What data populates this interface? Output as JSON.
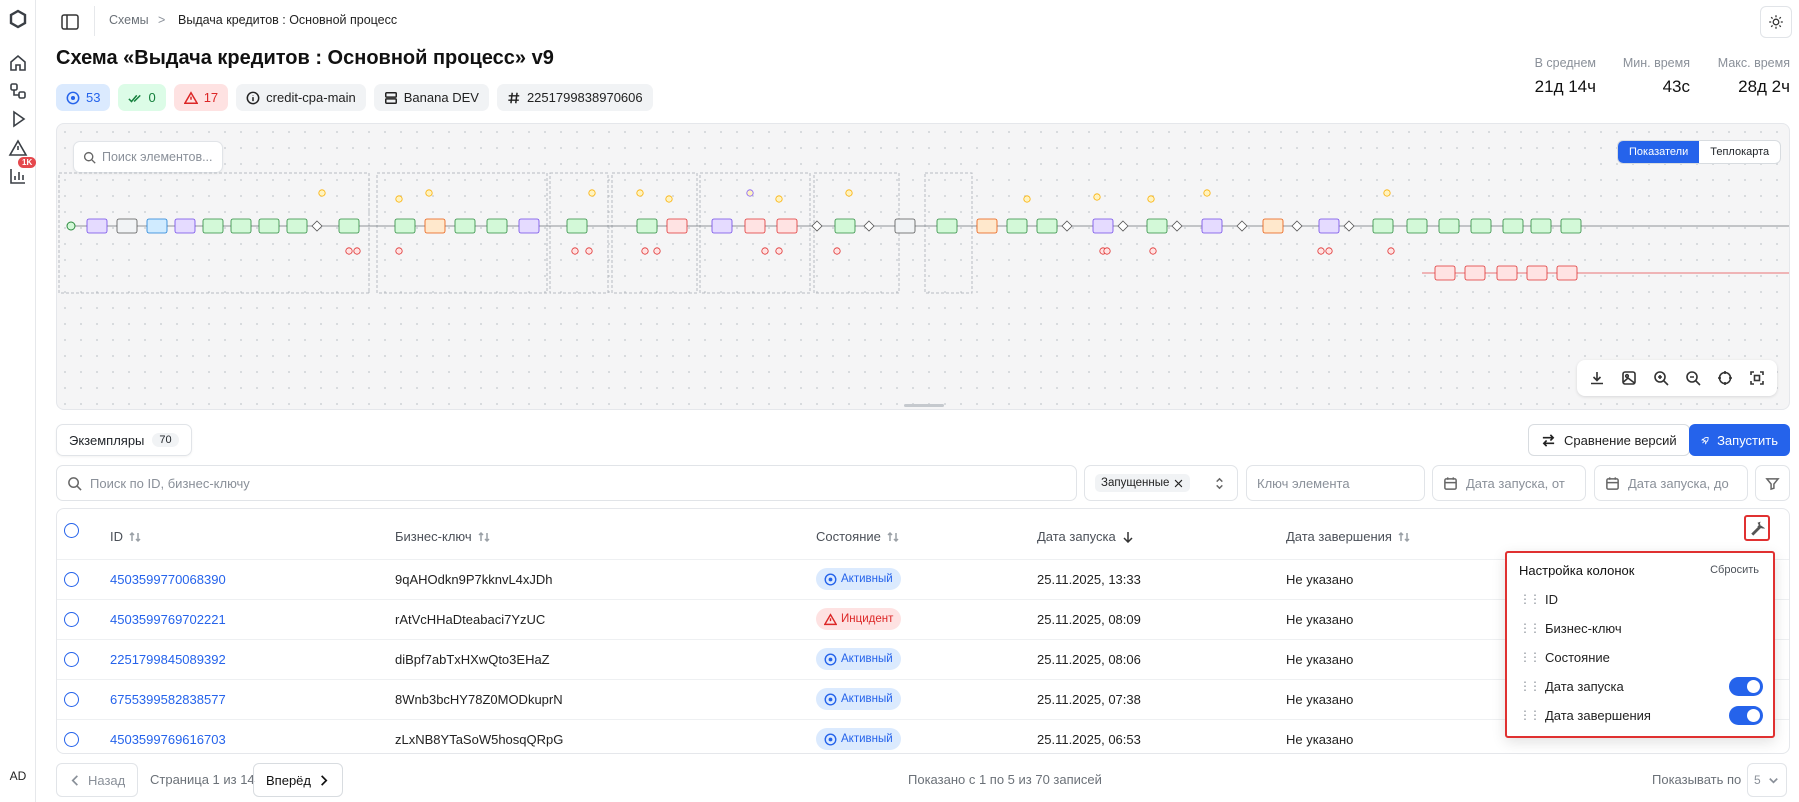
{
  "breadcrumb": {
    "root": "Схемы",
    "separator": ">",
    "current": "Выдача кредитов : Основной процесс"
  },
  "title": "Схема «Выдача кредитов : Основной процесс» v9",
  "rail": {
    "alerts_badge": "1K",
    "avatar": "AD"
  },
  "chips": {
    "active": "53",
    "completed": "0",
    "incidents": "17",
    "key": "credit-cpa-main",
    "env": "Banana DEV",
    "id": "2251799838970606"
  },
  "stats": [
    {
      "label": "В среднем",
      "value": "21д 14ч"
    },
    {
      "label": "Мин. время",
      "value": "43с"
    },
    {
      "label": "Макс. время",
      "value": "28д 2ч"
    }
  ],
  "canvas": {
    "search_placeholder": "Поиск элементов...",
    "mode_metrics": "Показатели",
    "mode_heatmap": "Теплокарта"
  },
  "instances": {
    "tab_label": "Экземпляры",
    "count": "70",
    "compare_label": "Сравнение версий",
    "run_label": "Запустить"
  },
  "filters": {
    "search_placeholder": "Поиск по ID, бизнес-ключу",
    "state_tag": "Запущенные",
    "element_key_placeholder": "Ключ элемента",
    "date_from_placeholder": "Дата запуска, от",
    "date_to_placeholder": "Дата запуска, до"
  },
  "table": {
    "columns": [
      "ID",
      "Бизнес-ключ",
      "Состояние",
      "Дата запуска",
      "Дата завершения"
    ],
    "rows": [
      {
        "id": "4503599770068390",
        "key": "9qAHOdkn9P7kknvL4xJDh",
        "state": "Активный",
        "start": "25.11.2025, 13:33",
        "end": "Не указано"
      },
      {
        "id": "4503599769702221",
        "key": "rAtVcHHaDteabaci7YzUC",
        "state": "Инцидент",
        "start": "25.11.2025, 08:09",
        "end": "Не указано"
      },
      {
        "id": "2251799845089392",
        "key": "diBpf7abTxHXwQto3EHaZ",
        "state": "Активный",
        "start": "25.11.2025, 08:06",
        "end": "Не указано"
      },
      {
        "id": "6755399582838577",
        "key": "8Wnb3bcHY78Z0MODkuprN",
        "state": "Активный",
        "start": "25.11.2025, 07:38",
        "end": "Не указано"
      },
      {
        "id": "4503599769616703",
        "key": "zLxNB8YTaSoW5hosqQRpG",
        "state": "Активный",
        "start": "25.11.2025, 06:53",
        "end": "Не указано"
      }
    ]
  },
  "column_settings": {
    "title": "Настройка колонок",
    "reset": "Сбросить",
    "items": [
      {
        "label": "ID",
        "toggle": false
      },
      {
        "label": "Бизнес-ключ",
        "toggle": false
      },
      {
        "label": "Состояние",
        "toggle": false
      },
      {
        "label": "Дата запуска",
        "toggle": true
      },
      {
        "label": "Дата завершения",
        "toggle": true
      }
    ]
  },
  "pagination": {
    "prev": "Назад",
    "page_info": "Страница 1 из 14",
    "next": "Вперёд",
    "summary": "Показано с 1 по 5 из 70 записей",
    "per_page_label": "Показывать по",
    "per_page_value": "5"
  },
  "colors": {
    "accent": "#2563eb",
    "danger": "#dc2626",
    "success": "#15803d",
    "highlight": "#e03131"
  }
}
